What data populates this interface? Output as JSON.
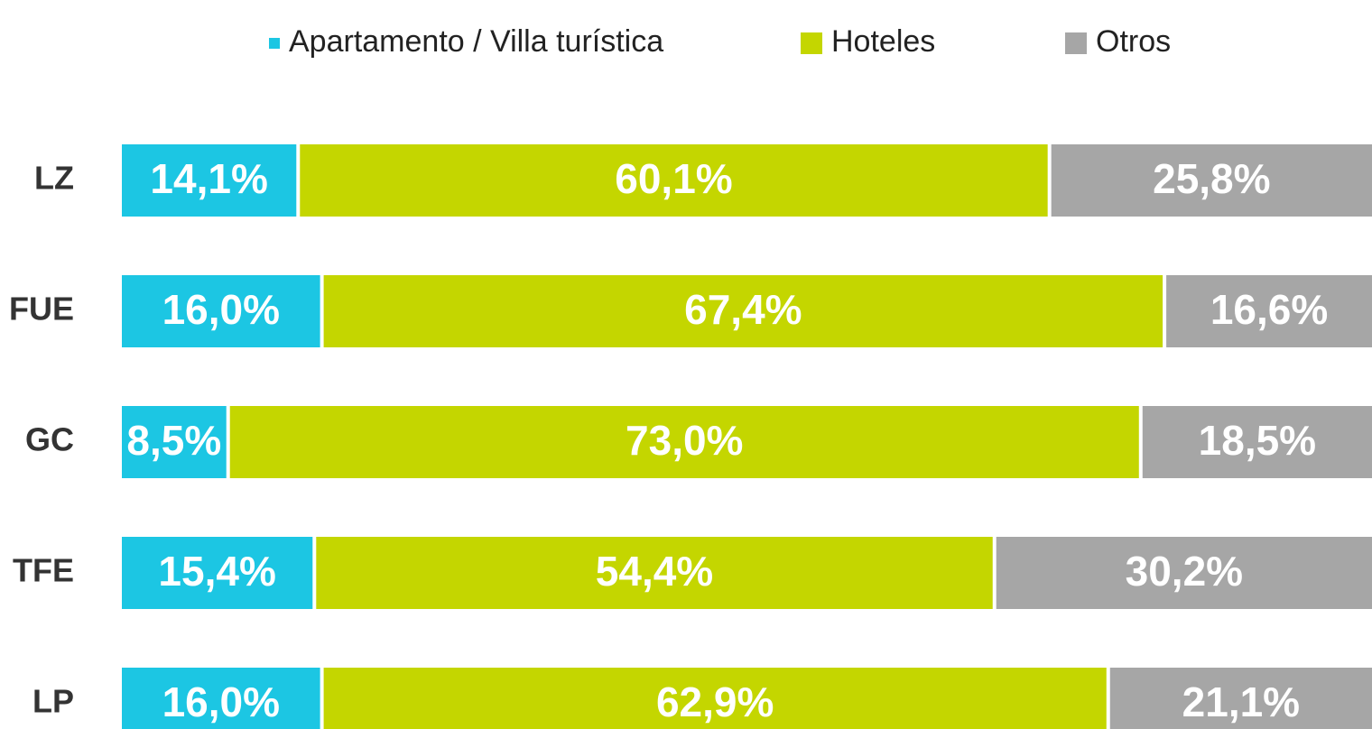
{
  "chart_data": {
    "type": "stacked_barh",
    "categories": [
      "LZ",
      "FUE",
      "GC",
      "TFE",
      "LP"
    ],
    "series": [
      {
        "name": "Apartamento / Villa turística",
        "color": "#1cc6e3",
        "values": [
          14.1,
          16.0,
          8.5,
          15.4,
          16.0
        ],
        "value_labels": [
          "14,1%",
          "16,0%",
          "8,5%",
          "15,4%",
          "16,0%"
        ]
      },
      {
        "name": "Hoteles",
        "color": "#c4d600",
        "values": [
          60.1,
          67.4,
          73.0,
          54.4,
          62.9
        ],
        "value_labels": [
          "60,1%",
          "67,4%",
          "73,0%",
          "54,4%",
          "62,9%"
        ]
      },
      {
        "name": "Otros",
        "color": "#a6a6a6",
        "values": [
          25.8,
          16.6,
          18.5,
          30.2,
          21.1
        ],
        "value_labels": [
          "25,8%",
          "16,6%",
          "18,5%",
          "30,2%",
          "21,1%"
        ]
      }
    ],
    "legend": "top"
  }
}
